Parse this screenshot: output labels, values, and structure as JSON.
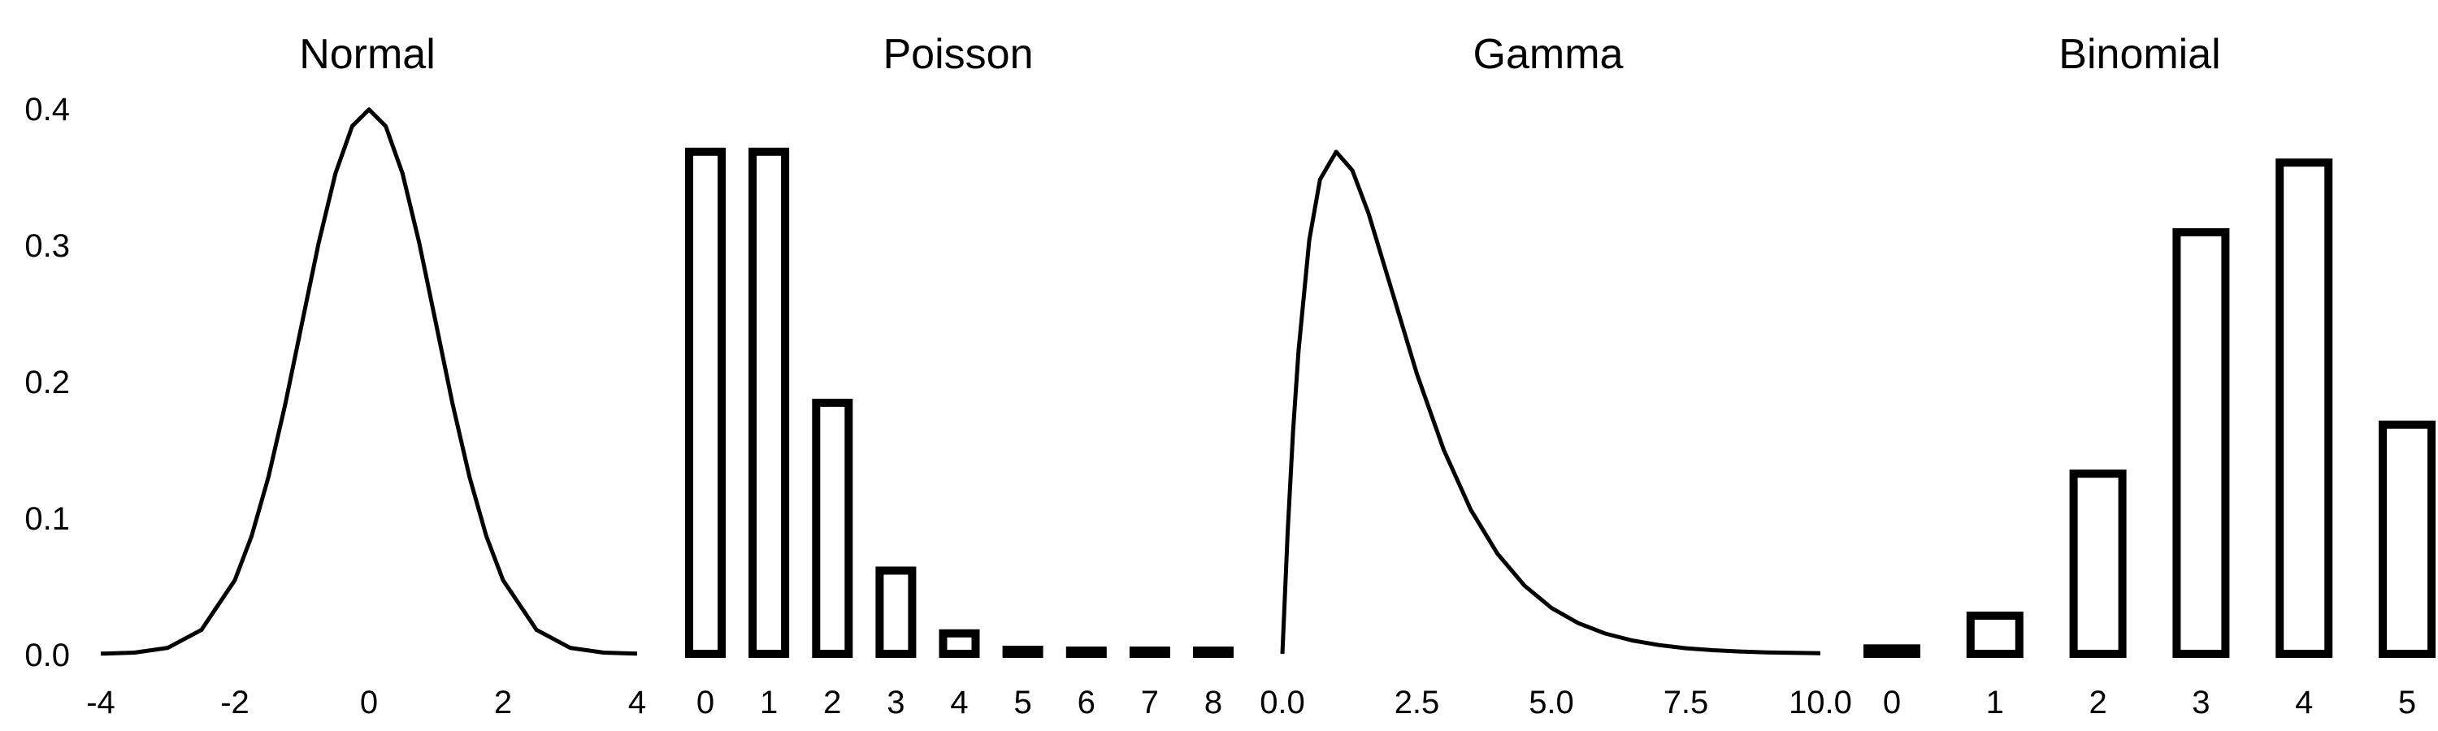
{
  "chart_data": [
    {
      "type": "line",
      "title": "Normal",
      "xlim": [
        -4,
        4
      ],
      "ylim": [
        0,
        0.4
      ],
      "x_ticks": [
        "-4",
        "-2",
        "0",
        "2",
        "4"
      ],
      "y_ticks": [
        "0.0",
        "0.1",
        "0.2",
        "0.3",
        "0.4"
      ],
      "x": [
        -4.0,
        -3.5,
        -3.0,
        -2.5,
        -2.0,
        -1.75,
        -1.5,
        -1.25,
        -1.0,
        -0.75,
        -0.5,
        -0.25,
        0.0,
        0.25,
        0.5,
        0.75,
        1.0,
        1.25,
        1.5,
        1.75,
        2.0,
        2.5,
        3.0,
        3.5,
        4.0
      ],
      "y": [
        0.0001,
        0.0009,
        0.0044,
        0.0175,
        0.054,
        0.0863,
        0.1295,
        0.1826,
        0.242,
        0.3011,
        0.3521,
        0.3867,
        0.3989,
        0.3867,
        0.3521,
        0.3011,
        0.242,
        0.1826,
        0.1295,
        0.0863,
        0.054,
        0.0175,
        0.0044,
        0.0009,
        0.0001
      ]
    },
    {
      "type": "bar",
      "title": "Poisson",
      "categories": [
        "0",
        "1",
        "2",
        "3",
        "4",
        "5",
        "6",
        "7",
        "8"
      ],
      "values": [
        0.368,
        0.368,
        0.184,
        0.061,
        0.015,
        0.003,
        0.0005,
        0.0001,
        0.0
      ]
    },
    {
      "type": "line",
      "title": "Gamma",
      "xlim": [
        0,
        10
      ],
      "x_ticks": [
        "0.0",
        "2.5",
        "5.0",
        "7.5",
        "10.0"
      ],
      "x": [
        0.0,
        0.1,
        0.2,
        0.3,
        0.5,
        0.7,
        1.0,
        1.3,
        1.6,
        2.0,
        2.5,
        3.0,
        3.5,
        4.0,
        4.5,
        5.0,
        5.5,
        6.0,
        6.5,
        7.0,
        7.5,
        8.0,
        8.5,
        9.0,
        9.5,
        10.0
      ],
      "y": [
        0.0,
        0.0905,
        0.1637,
        0.2222,
        0.3033,
        0.3476,
        0.3679,
        0.3543,
        0.323,
        0.2707,
        0.2052,
        0.1494,
        0.1057,
        0.0733,
        0.05,
        0.0337,
        0.0225,
        0.0149,
        0.0098,
        0.0064,
        0.0041,
        0.0027,
        0.0017,
        0.0011,
        0.0007,
        0.0005
      ]
    },
    {
      "type": "bar",
      "title": "Binomial",
      "categories": [
        "0",
        "1",
        "2",
        "3",
        "4",
        "5"
      ],
      "values": [
        0.004,
        0.028,
        0.132,
        0.309,
        0.36,
        0.168
      ]
    }
  ]
}
